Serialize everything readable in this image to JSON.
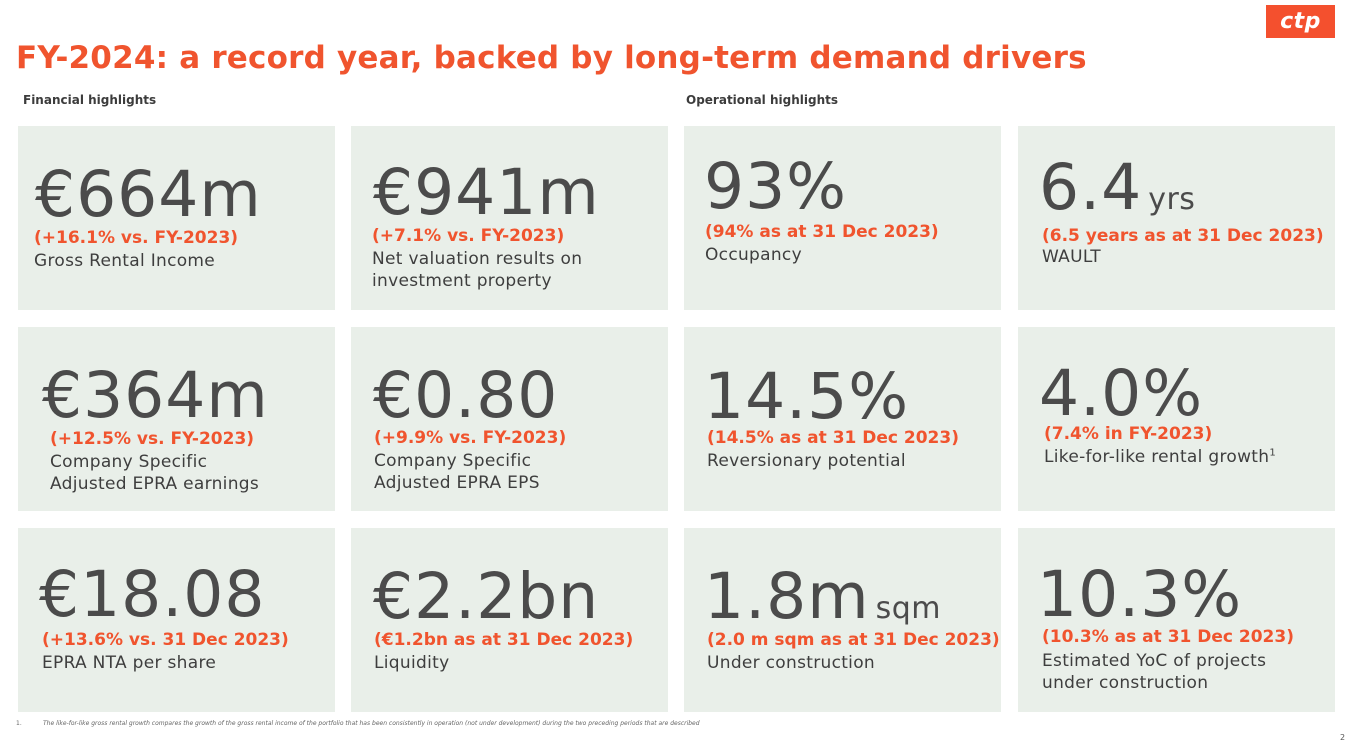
{
  "logo_text": "ctp",
  "title": "FY-2024: a record year, backed by long-term demand drivers",
  "sections": {
    "financial": "Financial highlights",
    "operational": "Operational highlights"
  },
  "cards": [
    {
      "value": "€664m",
      "unit": "",
      "note": "(+16.1% vs. FY-2023)",
      "desc": [
        "Gross Rental Income"
      ]
    },
    {
      "value": "€941m",
      "unit": "",
      "note": "(+7.1% vs. FY-2023)",
      "desc": [
        "Net valuation results on",
        "investment property"
      ]
    },
    {
      "value": "93%",
      "unit": "",
      "note": "(94% as at 31 Dec 2023)",
      "desc": [
        "Occupancy"
      ]
    },
    {
      "value": "6.4",
      "unit": "yrs",
      "note": "(6.5 years as at 31 Dec 2023)",
      "desc": [
        "WAULT"
      ]
    },
    {
      "value": "€364m",
      "unit": "",
      "note": "(+12.5% vs. FY-2023)",
      "desc": [
        "Company Specific",
        "Adjusted EPRA earnings"
      ]
    },
    {
      "value": "€0.80",
      "unit": "",
      "note": "(+9.9% vs. FY-2023)",
      "desc": [
        "Company Specific",
        "Adjusted EPRA EPS"
      ]
    },
    {
      "value": "14.5%",
      "unit": "",
      "note": "(14.5% as at 31 Dec 2023)",
      "desc": [
        "Reversionary potential"
      ]
    },
    {
      "value": "4.0%",
      "unit": "",
      "note": "(7.4% in FY-2023)",
      "desc": [
        "Like-for-like rental growth"
      ],
      "footnote_ref": "1"
    },
    {
      "value": "€18.08",
      "unit": "",
      "note": "(+13.6% vs. 31 Dec 2023)",
      "desc": [
        "EPRA NTA per share"
      ]
    },
    {
      "value": "€2.2bn",
      "unit": "",
      "note": "(€1.2bn as at 31 Dec 2023)",
      "desc": [
        "Liquidity"
      ]
    },
    {
      "value": "1.8m",
      "unit": "sqm",
      "note": "(2.0 m sqm as at 31 Dec 2023)",
      "desc": [
        "Under construction"
      ]
    },
    {
      "value": "10.3%",
      "unit": "",
      "note": "(10.3% as at 31 Dec 2023)",
      "desc": [
        "Estimated YoC of projects",
        "under construction"
      ]
    }
  ],
  "footnote": {
    "number": "1.",
    "text": "The like-for-like gross rental growth compares the growth of the gross rental income of the portfolio that has been consistently in operation (not under development) during the two preceding periods that are described"
  },
  "page_number": "2"
}
